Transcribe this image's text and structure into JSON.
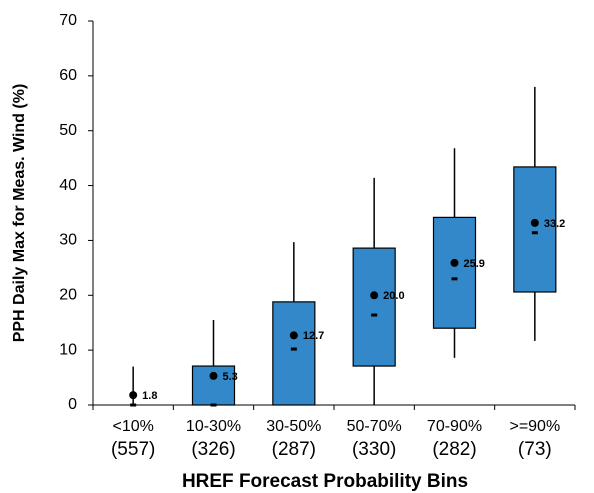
{
  "chart_data": {
    "type": "box",
    "y_label": "PPH Daily Max for Meas. Wind (%)",
    "x_label": "HREF Forecast Probability Bins",
    "categories": [
      "<10%",
      "10-30%",
      "30-50%",
      "50-70%",
      "70-90%",
      ">=90%"
    ],
    "category_counts": [
      "(557)",
      "(326)",
      "(287)",
      "(330)",
      "(282)",
      "(73)"
    ],
    "color": "#3288c8",
    "boxes": [
      {
        "whisker_low": 0,
        "q1": 0,
        "median": 0,
        "q3": 0,
        "whisker_high": 7.0,
        "mean": 1.8,
        "mean_label": "1.8"
      },
      {
        "whisker_low": 0,
        "q1": 0,
        "median": 0,
        "q3": 7.1,
        "whisker_high": 15.5,
        "mean": 5.3,
        "mean_label": "5.3"
      },
      {
        "whisker_low": 0,
        "q1": 0,
        "median": 10.2,
        "q3": 18.8,
        "whisker_high": 29.7,
        "mean": 12.7,
        "mean_label": "12.7"
      },
      {
        "whisker_low": 0,
        "q1": 7.1,
        "median": 16.4,
        "q3": 28.6,
        "whisker_high": 41.4,
        "mean": 20.0,
        "mean_label": "20.0"
      },
      {
        "whisker_low": 8.6,
        "q1": 14.0,
        "median": 23.0,
        "q3": 34.2,
        "whisker_high": 46.8,
        "mean": 25.9,
        "mean_label": "25.9"
      },
      {
        "whisker_low": 11.7,
        "q1": 20.6,
        "median": 31.4,
        "q3": 43.4,
        "whisker_high": 58.0,
        "mean": 33.2,
        "mean_label": "33.2"
      }
    ],
    "ylim": [
      0,
      70
    ],
    "yticks": [
      0,
      10,
      20,
      30,
      40,
      50,
      60,
      70
    ]
  }
}
